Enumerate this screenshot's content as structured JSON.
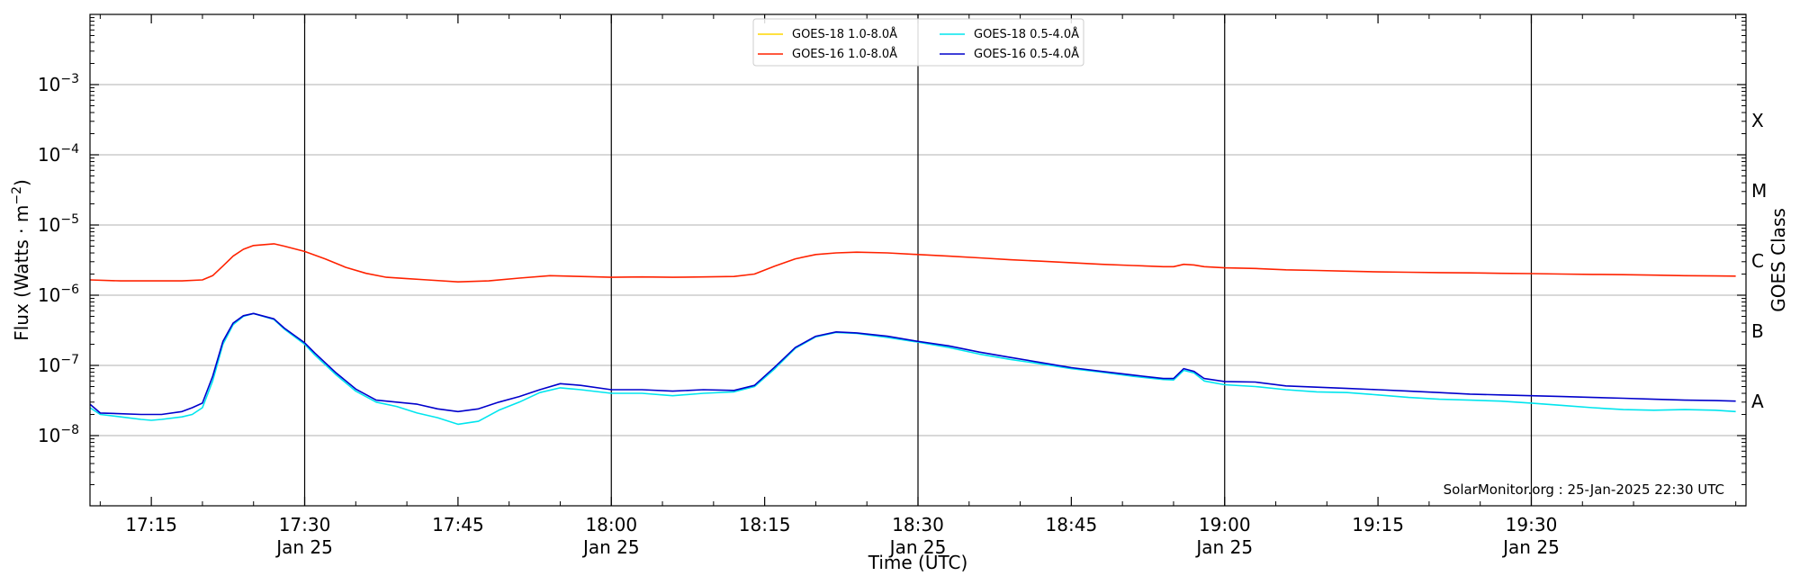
{
  "chart_data": {
    "type": "line",
    "xlabel": "Time (UTC)",
    "ylabel": "Flux (Watts · m",
    "ylabel_sup": "−2",
    "ylabel_close": ")",
    "y_right_label": "GOES Class",
    "x_range": [
      "17:09",
      "19:51"
    ],
    "ylim": [
      1e-09,
      0.01
    ],
    "y_scale": "log",
    "grid": "horizontal",
    "legend_position": "top-center",
    "x_ticks": [
      {
        "time": "17:15",
        "label": "17:15",
        "sublabel": ""
      },
      {
        "time": "17:30",
        "label": "17:30",
        "sublabel": "Jan 25"
      },
      {
        "time": "17:45",
        "label": "17:45",
        "sublabel": ""
      },
      {
        "time": "18:00",
        "label": "18:00",
        "sublabel": "Jan 25"
      },
      {
        "time": "18:15",
        "label": "18:15",
        "sublabel": ""
      },
      {
        "time": "18:30",
        "label": "18:30",
        "sublabel": "Jan 25"
      },
      {
        "time": "18:45",
        "label": "18:45",
        "sublabel": ""
      },
      {
        "time": "19:00",
        "label": "19:00",
        "sublabel": "Jan 25"
      },
      {
        "time": "19:15",
        "label": "19:15",
        "sublabel": ""
      },
      {
        "time": "19:30",
        "label": "19:30",
        "sublabel": "Jan 25"
      }
    ],
    "y_ticks": [
      {
        "value": 1e-08,
        "base": "10",
        "exp": "−8"
      },
      {
        "value": 1e-07,
        "base": "10",
        "exp": "−7"
      },
      {
        "value": 1e-06,
        "base": "10",
        "exp": "−6"
      },
      {
        "value": 1e-05,
        "base": "10",
        "exp": "−5"
      },
      {
        "value": 0.0001,
        "base": "10",
        "exp": "−4"
      },
      {
        "value": 0.001,
        "base": "10",
        "exp": "−3"
      }
    ],
    "goes_classes": [
      {
        "label": "A",
        "value": 3.16e-08
      },
      {
        "label": "B",
        "value": 3.16e-07
      },
      {
        "label": "C",
        "value": 3.16e-06
      },
      {
        "label": "M",
        "value": 3.16e-05
      },
      {
        "label": "X",
        "value": 0.000316
      }
    ],
    "day_lines": [
      "17:30",
      "18:00",
      "18:30",
      "19:00",
      "19:30"
    ],
    "credit": "SolarMonitor.org : 25-Jan-2025 22:30 UTC",
    "series": [
      {
        "name": "GOES-18 1.0-8.0Å",
        "color": "#ffd700",
        "points": []
      },
      {
        "name": "GOES-16 1.0-8.0Å",
        "color": "#ff2200",
        "points": [
          [
            "17:09",
            1.65e-06
          ],
          [
            "17:12",
            1.6e-06
          ],
          [
            "17:15",
            1.6e-06
          ],
          [
            "17:18",
            1.6e-06
          ],
          [
            "17:20",
            1.65e-06
          ],
          [
            "17:21",
            1.9e-06
          ],
          [
            "17:22",
            2.6e-06
          ],
          [
            "17:23",
            3.6e-06
          ],
          [
            "17:24",
            4.5e-06
          ],
          [
            "17:25",
            5.1e-06
          ],
          [
            "17:27",
            5.4e-06
          ],
          [
            "17:28",
            5e-06
          ],
          [
            "17:30",
            4.2e-06
          ],
          [
            "17:32",
            3.3e-06
          ],
          [
            "17:34",
            2.5e-06
          ],
          [
            "17:36",
            2.05e-06
          ],
          [
            "17:38",
            1.8e-06
          ],
          [
            "17:40",
            1.72e-06
          ],
          [
            "17:42",
            1.65e-06
          ],
          [
            "17:45",
            1.55e-06
          ],
          [
            "17:48",
            1.6e-06
          ],
          [
            "17:51",
            1.75e-06
          ],
          [
            "17:54",
            1.9e-06
          ],
          [
            "17:57",
            1.85e-06
          ],
          [
            "18:00",
            1.8e-06
          ],
          [
            "18:03",
            1.82e-06
          ],
          [
            "18:06",
            1.8e-06
          ],
          [
            "18:09",
            1.82e-06
          ],
          [
            "18:12",
            1.85e-06
          ],
          [
            "18:14",
            2e-06
          ],
          [
            "18:16",
            2.6e-06
          ],
          [
            "18:18",
            3.3e-06
          ],
          [
            "18:20",
            3.8e-06
          ],
          [
            "18:22",
            4e-06
          ],
          [
            "18:24",
            4.1e-06
          ],
          [
            "18:27",
            4e-06
          ],
          [
            "18:30",
            3.8e-06
          ],
          [
            "18:33",
            3.6e-06
          ],
          [
            "18:36",
            3.4e-06
          ],
          [
            "18:39",
            3.2e-06
          ],
          [
            "18:42",
            3.05e-06
          ],
          [
            "18:45",
            2.9e-06
          ],
          [
            "18:48",
            2.75e-06
          ],
          [
            "18:51",
            2.65e-06
          ],
          [
            "18:54",
            2.55e-06
          ],
          [
            "18:55",
            2.55e-06
          ],
          [
            "18:56",
            2.75e-06
          ],
          [
            "18:57",
            2.7e-06
          ],
          [
            "18:58",
            2.55e-06
          ],
          [
            "19:00",
            2.45e-06
          ],
          [
            "19:03",
            2.4e-06
          ],
          [
            "19:06",
            2.3e-06
          ],
          [
            "19:09",
            2.25e-06
          ],
          [
            "19:12",
            2.2e-06
          ],
          [
            "19:15",
            2.15e-06
          ],
          [
            "19:18",
            2.12e-06
          ],
          [
            "19:21",
            2.1e-06
          ],
          [
            "19:24",
            2.08e-06
          ],
          [
            "19:27",
            2.05e-06
          ],
          [
            "19:30",
            2.03e-06
          ],
          [
            "19:33",
            2e-06
          ],
          [
            "19:36",
            1.98e-06
          ],
          [
            "19:39",
            1.96e-06
          ],
          [
            "19:42",
            1.93e-06
          ],
          [
            "19:45",
            1.9e-06
          ],
          [
            "19:48",
            1.88e-06
          ],
          [
            "19:50",
            1.87e-06
          ]
        ]
      },
      {
        "name": "GOES-18 0.5-4.0Å",
        "color": "#00e5ee",
        "points": [
          [
            "17:09",
            2.5e-08
          ],
          [
            "17:10",
            2e-08
          ],
          [
            "17:12",
            1.85e-08
          ],
          [
            "17:14",
            1.7e-08
          ],
          [
            "17:15",
            1.65e-08
          ],
          [
            "17:16",
            1.7e-08
          ],
          [
            "17:18",
            1.85e-08
          ],
          [
            "17:19",
            2e-08
          ],
          [
            "17:20",
            2.5e-08
          ],
          [
            "17:21",
            6e-08
          ],
          [
            "17:22",
            2e-07
          ],
          [
            "17:23",
            3.8e-07
          ],
          [
            "17:24",
            5e-07
          ],
          [
            "17:25",
            5.5e-07
          ],
          [
            "17:27",
            4.5e-07
          ],
          [
            "17:28",
            3.3e-07
          ],
          [
            "17:30",
            2e-07
          ],
          [
            "17:31",
            1.4e-07
          ],
          [
            "17:33",
            7.5e-08
          ],
          [
            "17:35",
            4.3e-08
          ],
          [
            "17:37",
            3e-08
          ],
          [
            "17:39",
            2.6e-08
          ],
          [
            "17:41",
            2.1e-08
          ],
          [
            "17:43",
            1.8e-08
          ],
          [
            "17:45",
            1.45e-08
          ],
          [
            "17:47",
            1.6e-08
          ],
          [
            "17:49",
            2.3e-08
          ],
          [
            "17:51",
            3e-08
          ],
          [
            "17:53",
            4.1e-08
          ],
          [
            "17:55",
            4.8e-08
          ],
          [
            "17:57",
            4.5e-08
          ],
          [
            "18:00",
            4e-08
          ],
          [
            "18:03",
            4e-08
          ],
          [
            "18:06",
            3.7e-08
          ],
          [
            "18:09",
            4e-08
          ],
          [
            "18:12",
            4.2e-08
          ],
          [
            "18:14",
            5e-08
          ],
          [
            "18:16",
            9e-08
          ],
          [
            "18:18",
            1.75e-07
          ],
          [
            "18:20",
            2.55e-07
          ],
          [
            "18:22",
            2.95e-07
          ],
          [
            "18:24",
            2.85e-07
          ],
          [
            "18:27",
            2.5e-07
          ],
          [
            "18:30",
            2.15e-07
          ],
          [
            "18:33",
            1.8e-07
          ],
          [
            "18:36",
            1.45e-07
          ],
          [
            "18:39",
            1.22e-07
          ],
          [
            "18:42",
            1.05e-07
          ],
          [
            "18:45",
            9e-08
          ],
          [
            "18:48",
            8e-08
          ],
          [
            "18:51",
            7e-08
          ],
          [
            "18:54",
            6.3e-08
          ],
          [
            "18:55",
            6.2e-08
          ],
          [
            "18:56",
            8.5e-08
          ],
          [
            "18:57",
            7.8e-08
          ],
          [
            "18:58",
            6e-08
          ],
          [
            "19:00",
            5.3e-08
          ],
          [
            "19:03",
            5e-08
          ],
          [
            "19:06",
            4.5e-08
          ],
          [
            "19:09",
            4.2e-08
          ],
          [
            "19:12",
            4.1e-08
          ],
          [
            "19:15",
            3.8e-08
          ],
          [
            "19:18",
            3.5e-08
          ],
          [
            "19:21",
            3.3e-08
          ],
          [
            "19:24",
            3.2e-08
          ],
          [
            "19:27",
            3.1e-08
          ],
          [
            "19:30",
            2.9e-08
          ],
          [
            "19:33",
            2.7e-08
          ],
          [
            "19:36",
            2.5e-08
          ],
          [
            "19:39",
            2.35e-08
          ],
          [
            "19:42",
            2.3e-08
          ],
          [
            "19:45",
            2.35e-08
          ],
          [
            "19:48",
            2.3e-08
          ],
          [
            "19:50",
            2.2e-08
          ]
        ]
      },
      {
        "name": "GOES-16 0.5-4.0Å",
        "color": "#0000cc",
        "points": [
          [
            "17:09",
            2.8e-08
          ],
          [
            "17:10",
            2.1e-08
          ],
          [
            "17:12",
            2.05e-08
          ],
          [
            "17:14",
            2e-08
          ],
          [
            "17:15",
            2e-08
          ],
          [
            "17:16",
            2e-08
          ],
          [
            "17:18",
            2.2e-08
          ],
          [
            "17:19",
            2.5e-08
          ],
          [
            "17:20",
            2.9e-08
          ],
          [
            "17:21",
            7e-08
          ],
          [
            "17:22",
            2.2e-07
          ],
          [
            "17:23",
            4e-07
          ],
          [
            "17:24",
            5.1e-07
          ],
          [
            "17:25",
            5.5e-07
          ],
          [
            "17:27",
            4.6e-07
          ],
          [
            "17:28",
            3.4e-07
          ],
          [
            "17:30",
            2.1e-07
          ],
          [
            "17:31",
            1.5e-07
          ],
          [
            "17:33",
            8e-08
          ],
          [
            "17:35",
            4.6e-08
          ],
          [
            "17:37",
            3.2e-08
          ],
          [
            "17:39",
            3e-08
          ],
          [
            "17:41",
            2.8e-08
          ],
          [
            "17:43",
            2.4e-08
          ],
          [
            "17:45",
            2.2e-08
          ],
          [
            "17:47",
            2.4e-08
          ],
          [
            "17:49",
            3e-08
          ],
          [
            "17:51",
            3.6e-08
          ],
          [
            "17:53",
            4.5e-08
          ],
          [
            "17:55",
            5.5e-08
          ],
          [
            "17:57",
            5.2e-08
          ],
          [
            "18:00",
            4.5e-08
          ],
          [
            "18:03",
            4.5e-08
          ],
          [
            "18:06",
            4.3e-08
          ],
          [
            "18:09",
            4.5e-08
          ],
          [
            "18:12",
            4.4e-08
          ],
          [
            "18:14",
            5.2e-08
          ],
          [
            "18:16",
            9.5e-08
          ],
          [
            "18:18",
            1.8e-07
          ],
          [
            "18:20",
            2.6e-07
          ],
          [
            "18:22",
            3e-07
          ],
          [
            "18:24",
            2.9e-07
          ],
          [
            "18:27",
            2.6e-07
          ],
          [
            "18:30",
            2.2e-07
          ],
          [
            "18:33",
            1.9e-07
          ],
          [
            "18:36",
            1.55e-07
          ],
          [
            "18:39",
            1.3e-07
          ],
          [
            "18:42",
            1.1e-07
          ],
          [
            "18:45",
            9.3e-08
          ],
          [
            "18:48",
            8.2e-08
          ],
          [
            "18:51",
            7.3e-08
          ],
          [
            "18:54",
            6.5e-08
          ],
          [
            "18:55",
            6.5e-08
          ],
          [
            "18:56",
            9e-08
          ],
          [
            "18:57",
            8.2e-08
          ],
          [
            "18:58",
            6.5e-08
          ],
          [
            "19:00",
            5.9e-08
          ],
          [
            "19:03",
            5.8e-08
          ],
          [
            "19:06",
            5.1e-08
          ],
          [
            "19:09",
            4.9e-08
          ],
          [
            "19:12",
            4.7e-08
          ],
          [
            "19:15",
            4.5e-08
          ],
          [
            "19:18",
            4.3e-08
          ],
          [
            "19:21",
            4.1e-08
          ],
          [
            "19:24",
            3.9e-08
          ],
          [
            "19:27",
            3.8e-08
          ],
          [
            "19:30",
            3.7e-08
          ],
          [
            "19:33",
            3.6e-08
          ],
          [
            "19:36",
            3.5e-08
          ],
          [
            "19:39",
            3.4e-08
          ],
          [
            "19:42",
            3.3e-08
          ],
          [
            "19:45",
            3.2e-08
          ],
          [
            "19:48",
            3.15e-08
          ],
          [
            "19:50",
            3.1e-08
          ]
        ]
      }
    ]
  }
}
